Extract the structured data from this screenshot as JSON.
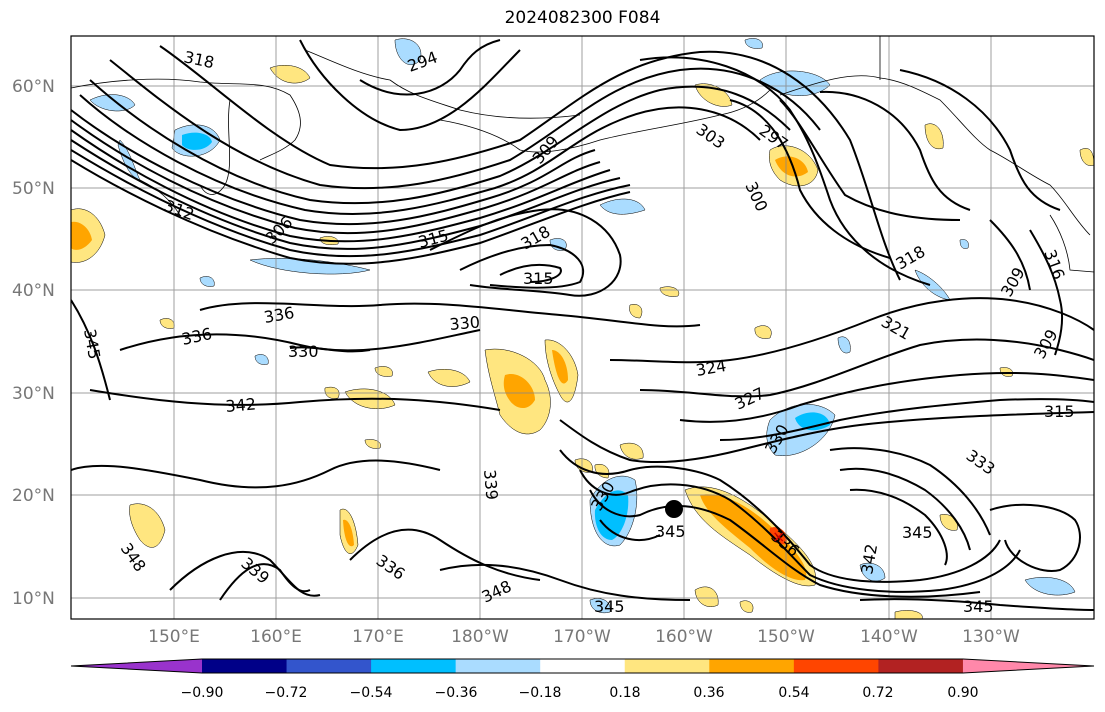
{
  "title": "2024082300 F084",
  "lat_labels": [
    "60°N",
    "50°N",
    "40°N",
    "30°N",
    "20°N",
    "10°N"
  ],
  "lon_labels": [
    "150°E",
    "160°E",
    "170°E",
    "180°W",
    "170°W",
    "160°W",
    "150°W",
    "140°W",
    "130°W"
  ],
  "contour_labels": [
    "318",
    "294",
    "303",
    "297",
    "300",
    "309",
    "312",
    "306",
    "315",
    "318",
    "315",
    "336",
    "336",
    "330",
    "330",
    "345",
    "342",
    "324",
    "327",
    "321",
    "318",
    "309",
    "316",
    "309",
    "315",
    "330",
    "333",
    "339",
    "330",
    "345",
    "336",
    "345",
    "348",
    "339",
    "336",
    "348",
    "345",
    "345",
    "342"
  ],
  "colorbar": {
    "ticks": [
      "−0.90",
      "−0.72",
      "−0.54",
      "−0.36",
      "−0.18",
      "0.18",
      "0.36",
      "0.54",
      "0.72",
      "0.90"
    ],
    "colors": [
      "#9933cc",
      "#000088",
      "#3355cc",
      "#00bfff",
      "#aadcff",
      "#ffffff",
      "#ffe680",
      "#ffa500",
      "#ff4500",
      "#b22222",
      "#ff88aa"
    ]
  },
  "marker": "storm-center"
}
